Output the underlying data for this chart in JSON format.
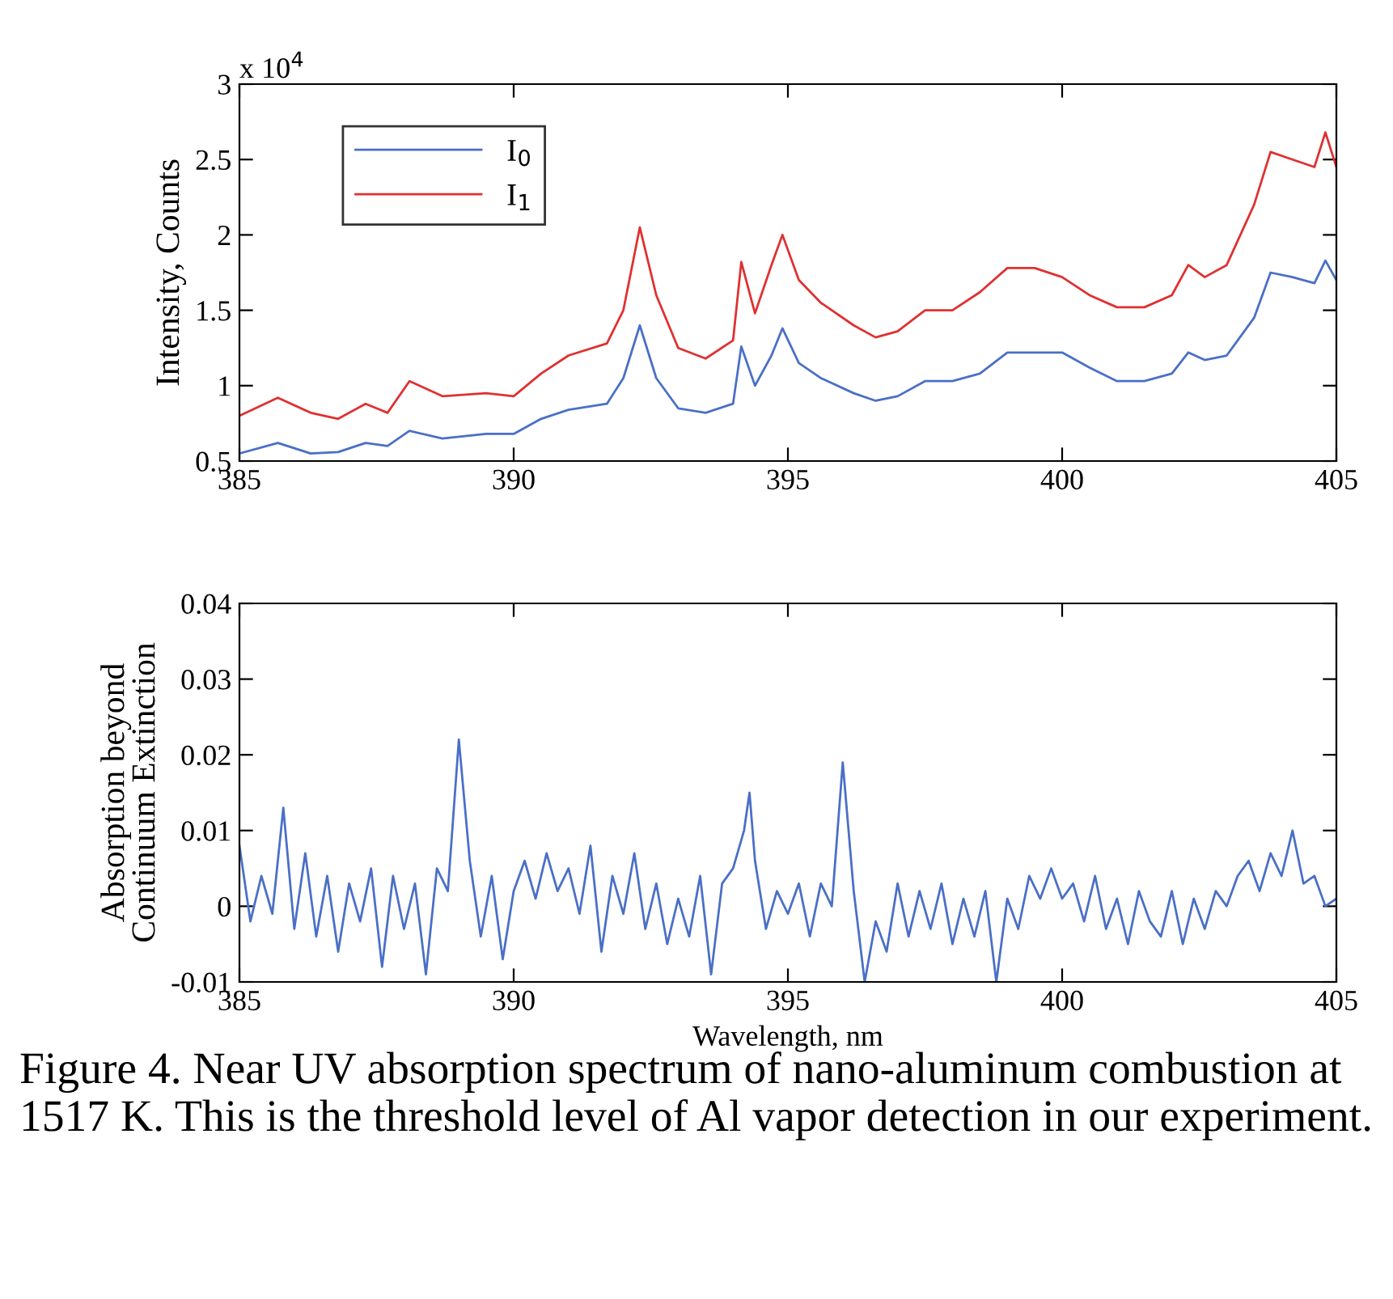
{
  "chart_data": [
    {
      "type": "line",
      "ylabel": "Intensity, Counts",
      "annotations": [
        "x 10$^{4}$"
      ],
      "legend": "top left",
      "grid": false,
      "xlim": [
        385,
        405
      ],
      "xticks": [
        385,
        390,
        395,
        400,
        405
      ],
      "ylim": [
        0.5,
        3
      ],
      "yticks": [
        0.5,
        1,
        1.5,
        2,
        2.5,
        3
      ],
      "x": [
        385,
        385.7,
        386.3,
        386.8,
        387.3,
        387.7,
        388.1,
        388.7,
        389.5,
        390,
        390.5,
        391,
        391.7,
        392,
        392.3,
        392.6,
        393,
        393.5,
        394,
        394.15,
        394.4,
        394.7,
        394.9,
        395.2,
        395.6,
        396.2,
        396.6,
        397,
        397.5,
        398,
        398.5,
        399,
        399.5,
        400,
        400.5,
        401,
        401.5,
        402,
        402.3,
        402.6,
        403,
        403.5,
        403.8,
        404.2,
        404.6,
        404.8,
        405
      ],
      "series": [
        {
          "name": "I$_{0}$",
          "color": "#4a6fc7",
          "values": [
            0.55,
            0.62,
            0.55,
            0.56,
            0.62,
            0.6,
            0.7,
            0.65,
            0.68,
            0.68,
            0.78,
            0.84,
            0.88,
            1.05,
            1.4,
            1.05,
            0.85,
            0.82,
            0.88,
            1.26,
            1.0,
            1.2,
            1.38,
            1.15,
            1.05,
            0.95,
            0.9,
            0.93,
            1.03,
            1.03,
            1.08,
            1.22,
            1.22,
            1.22,
            1.12,
            1.03,
            1.03,
            1.08,
            1.22,
            1.17,
            1.2,
            1.45,
            1.75,
            1.72,
            1.68,
            1.83,
            1.7
          ]
        },
        {
          "name": "I$_{1}$",
          "color": "#e03030",
          "values": [
            0.8,
            0.92,
            0.82,
            0.78,
            0.88,
            0.82,
            1.03,
            0.93,
            0.95,
            0.93,
            1.08,
            1.2,
            1.28,
            1.5,
            2.05,
            1.6,
            1.25,
            1.18,
            1.3,
            1.82,
            1.48,
            1.8,
            2.0,
            1.7,
            1.55,
            1.4,
            1.32,
            1.36,
            1.5,
            1.5,
            1.62,
            1.78,
            1.78,
            1.72,
            1.6,
            1.52,
            1.52,
            1.6,
            1.8,
            1.72,
            1.8,
            2.2,
            2.55,
            2.5,
            2.45,
            2.68,
            2.45
          ]
        }
      ]
    },
    {
      "type": "line",
      "xlabel": "Wavelength, nm",
      "ylabel": "Absorption beyond\nContinuum Extinction",
      "grid": false,
      "annotations": [
        "Figure 4. Near UV absorption spectrum of nano-aluminum combustion at 1517 K. This is the threshold level of Al vapor detection in our experiment."
      ],
      "xlim": [
        385,
        405
      ],
      "xticks": [
        385,
        390,
        395,
        400,
        405
      ],
      "ylim": [
        -0.01,
        0.04
      ],
      "yticks": [
        -0.01,
        0,
        0.01,
        0.02,
        0.03,
        0.04
      ],
      "x": [
        385.0,
        385.2,
        385.4,
        385.6,
        385.8,
        386.0,
        386.2,
        386.4,
        386.6,
        386.8,
        387.0,
        387.2,
        387.4,
        387.6,
        387.8,
        388.0,
        388.2,
        388.4,
        388.6,
        388.8,
        389.0,
        389.2,
        389.4,
        389.6,
        389.8,
        390.0,
        390.2,
        390.4,
        390.6,
        390.8,
        391.0,
        391.2,
        391.4,
        391.6,
        391.8,
        392.0,
        392.2,
        392.4,
        392.6,
        392.8,
        393.0,
        393.2,
        393.4,
        393.6,
        393.8,
        394.0,
        394.2,
        394.3,
        394.4,
        394.6,
        394.8,
        395.0,
        395.2,
        395.4,
        395.6,
        395.8,
        396.0,
        396.2,
        396.4,
        396.6,
        396.8,
        397.0,
        397.2,
        397.4,
        397.6,
        397.8,
        398.0,
        398.2,
        398.4,
        398.6,
        398.8,
        399.0,
        399.2,
        399.4,
        399.6,
        399.8,
        400.0,
        400.2,
        400.4,
        400.6,
        400.8,
        401.0,
        401.2,
        401.4,
        401.6,
        401.8,
        402.0,
        402.2,
        402.4,
        402.6,
        402.8,
        403.0,
        403.2,
        403.4,
        403.6,
        403.8,
        404.0,
        404.2,
        404.4,
        404.6,
        404.8,
        405.0
      ],
      "series": [
        {
          "color": "#4a6fc7",
          "values": [
            0.008,
            -0.002,
            0.004,
            -0.001,
            0.013,
            -0.003,
            0.007,
            -0.004,
            0.004,
            -0.006,
            0.003,
            -0.002,
            0.005,
            -0.008,
            0.004,
            -0.003,
            0.003,
            -0.009,
            0.005,
            0.002,
            0.022,
            0.006,
            -0.004,
            0.004,
            -0.007,
            0.002,
            0.006,
            0.001,
            0.007,
            0.002,
            0.005,
            -0.001,
            0.008,
            -0.006,
            0.004,
            -0.001,
            0.007,
            -0.003,
            0.003,
            -0.005,
            0.001,
            -0.004,
            0.004,
            -0.009,
            0.003,
            0.005,
            0.01,
            0.015,
            0.006,
            -0.003,
            0.002,
            -0.001,
            0.003,
            -0.004,
            0.003,
            0.0,
            0.019,
            0.002,
            -0.01,
            -0.002,
            -0.006,
            0.003,
            -0.004,
            0.002,
            -0.003,
            0.003,
            -0.005,
            0.001,
            -0.004,
            0.002,
            -0.01,
            0.001,
            -0.003,
            0.004,
            0.001,
            0.005,
            0.001,
            0.003,
            -0.002,
            0.004,
            -0.003,
            0.001,
            -0.005,
            0.002,
            -0.002,
            -0.004,
            0.002,
            -0.005,
            0.001,
            -0.003,
            0.002,
            0.0,
            0.004,
            0.006,
            0.002,
            0.007,
            0.004,
            0.01,
            0.003,
            0.004,
            0.0,
            0.001
          ]
        }
      ]
    }
  ]
}
